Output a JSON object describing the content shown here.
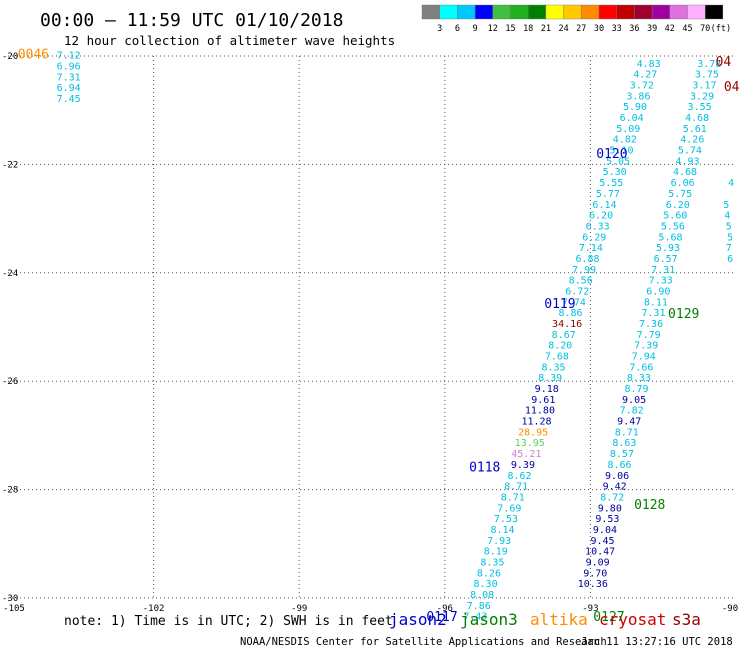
{
  "header": {
    "title": "00:00 – 11:59 UTC 01/10/2018",
    "subtitle": "12 hour collection of altimeter wave heights"
  },
  "color_scale": {
    "labels": [
      "3",
      "6",
      "9",
      "12",
      "15",
      "18",
      "21",
      "24",
      "27",
      "30",
      "33",
      "36",
      "39",
      "42",
      "45",
      "70",
      "(ft)"
    ],
    "colors": [
      "#808080",
      "#00ffff",
      "#00c8ff",
      "#0000ff",
      "#40c040",
      "#20b020",
      "#008000",
      "#ffff00",
      "#ffc800",
      "#ff8c00",
      "#ff0000",
      "#c00000",
      "#a00030",
      "#a000a0",
      "#e070e0",
      "#ffb0ff",
      "#000000"
    ]
  },
  "colors": {
    "jason2": "#0000cc",
    "jason3": "#008000",
    "altika": "#ff8c00",
    "cryosat": "#cc0000",
    "s3a": "#990000",
    "cyan": "#00c0e0",
    "navy": "#000099",
    "darkred": "#8b0000",
    "lightgreen": "#60d060",
    "violet": "#d080d0"
  },
  "chart_data": {
    "type": "scatter",
    "title": "00:00 – 11:59 UTC 01/10/2018",
    "subtitle": "12 hour collection of altimeter wave heights",
    "xlim": [
      -105,
      -90
    ],
    "ylim": [
      -30,
      -20
    ],
    "x_ticks": [
      -105,
      -102,
      -99,
      -96,
      -93,
      -90
    ],
    "x_tick_labels": [
      "-105",
      "-102",
      "-99",
      "-96",
      "-93",
      "-90"
    ],
    "y_ticks": [
      -20,
      -22,
      -24,
      -26,
      -28,
      -30
    ],
    "y_tick_labels": [
      "-20",
      "-22",
      "-24",
      "-26",
      "-28",
      "-30"
    ],
    "grid": true,
    "units": "ft",
    "track_a": [
      {
        "lon": -103.75,
        "lat": -20.05,
        "v": "7.12",
        "c": "cyan"
      },
      {
        "lon": -103.75,
        "lat": -20.25,
        "v": "6.96",
        "c": "cyan"
      },
      {
        "lon": -103.75,
        "lat": -20.45,
        "v": "7.31",
        "c": "cyan"
      },
      {
        "lon": -103.75,
        "lat": -20.65,
        "v": "6.94",
        "c": "cyan"
      },
      {
        "lon": -103.75,
        "lat": -20.85,
        "v": "7.45",
        "c": "cyan"
      }
    ],
    "track_b": [
      {
        "lon": -91.8,
        "lat": -20.2,
        "v": "4.83",
        "c": "cyan"
      },
      {
        "lon": -91.87,
        "lat": -20.4,
        "v": "4.27",
        "c": "cyan"
      },
      {
        "lon": -91.94,
        "lat": -20.6,
        "v": "3.72",
        "c": "cyan"
      },
      {
        "lon": -92.01,
        "lat": -20.8,
        "v": "3.86",
        "c": "cyan"
      },
      {
        "lon": -92.08,
        "lat": -21.0,
        "v": "5.90",
        "c": "cyan"
      },
      {
        "lon": -92.15,
        "lat": -21.2,
        "v": "6.04",
        "c": "cyan"
      },
      {
        "lon": -92.22,
        "lat": -21.4,
        "v": "5.09",
        "c": "cyan"
      },
      {
        "lon": -92.29,
        "lat": -21.6,
        "v": "4.82",
        "c": "cyan"
      },
      {
        "lon": -92.36,
        "lat": -21.8,
        "v": "5.10",
        "c": "cyan"
      },
      {
        "lon": -92.43,
        "lat": -22.0,
        "v": "5.05",
        "c": "cyan"
      },
      {
        "lon": -92.5,
        "lat": -22.2,
        "v": "5.30",
        "c": "cyan"
      },
      {
        "lon": -92.57,
        "lat": -22.4,
        "v": "5.55",
        "c": "cyan"
      },
      {
        "lon": -92.64,
        "lat": -22.6,
        "v": "5.77",
        "c": "cyan"
      },
      {
        "lon": -92.71,
        "lat": -22.8,
        "v": "6.14",
        "c": "cyan"
      },
      {
        "lon": -92.78,
        "lat": -23.0,
        "v": "6.20",
        "c": "cyan"
      },
      {
        "lon": -92.85,
        "lat": -23.2,
        "v": "6.33",
        "c": "cyan"
      },
      {
        "lon": -92.92,
        "lat": -23.4,
        "v": "6.29",
        "c": "cyan"
      },
      {
        "lon": -92.99,
        "lat": -23.6,
        "v": "7.14",
        "c": "cyan"
      },
      {
        "lon": -93.06,
        "lat": -23.8,
        "v": "6.88",
        "c": "cyan"
      },
      {
        "lon": -93.13,
        "lat": -24.0,
        "v": "7.99",
        "c": "cyan"
      },
      {
        "lon": -93.2,
        "lat": -24.2,
        "v": "8.56",
        "c": "cyan"
      },
      {
        "lon": -93.27,
        "lat": -24.4,
        "v": "6.72",
        "c": "cyan"
      },
      {
        "lon": -93.34,
        "lat": -24.6,
        "v": "7.74",
        "c": "cyan"
      },
      {
        "lon": -93.41,
        "lat": -24.8,
        "v": "8.86",
        "c": "cyan"
      },
      {
        "lon": -93.48,
        "lat": -25.0,
        "v": "34.16",
        "c": "darkred"
      },
      {
        "lon": -93.55,
        "lat": -25.2,
        "v": "8.67",
        "c": "cyan"
      },
      {
        "lon": -93.62,
        "lat": -25.4,
        "v": "8.20",
        "c": "cyan"
      },
      {
        "lon": -93.69,
        "lat": -25.6,
        "v": "7.68",
        "c": "cyan"
      },
      {
        "lon": -93.76,
        "lat": -25.8,
        "v": "8.35",
        "c": "cyan"
      },
      {
        "lon": -93.83,
        "lat": -26.0,
        "v": "8.39",
        "c": "cyan"
      },
      {
        "lon": -93.9,
        "lat": -26.2,
        "v": "9.18",
        "c": "navy"
      },
      {
        "lon": -93.97,
        "lat": -26.4,
        "v": "9.61",
        "c": "navy"
      },
      {
        "lon": -94.04,
        "lat": -26.6,
        "v": "11.80",
        "c": "navy"
      },
      {
        "lon": -94.11,
        "lat": -26.8,
        "v": "11.28",
        "c": "navy"
      },
      {
        "lon": -94.18,
        "lat": -27.0,
        "v": "28.95",
        "c": "altika"
      },
      {
        "lon": -94.25,
        "lat": -27.2,
        "v": "13.95",
        "c": "lightgreen"
      },
      {
        "lon": -94.32,
        "lat": -27.4,
        "v": "45.21",
        "c": "violet"
      },
      {
        "lon": -94.39,
        "lat": -27.6,
        "v": "9.39",
        "c": "navy"
      },
      {
        "lon": -94.46,
        "lat": -27.8,
        "v": "8.62",
        "c": "cyan"
      },
      {
        "lon": -94.53,
        "lat": -28.0,
        "v": "8.71",
        "c": "cyan"
      },
      {
        "lon": -94.6,
        "lat": -28.2,
        "v": "8.71",
        "c": "cyan"
      },
      {
        "lon": -94.67,
        "lat": -28.4,
        "v": "7.69",
        "c": "cyan"
      },
      {
        "lon": -94.74,
        "lat": -28.6,
        "v": "7.53",
        "c": "cyan"
      },
      {
        "lon": -94.81,
        "lat": -28.8,
        "v": "8.14",
        "c": "cyan"
      },
      {
        "lon": -94.88,
        "lat": -29.0,
        "v": "7.93",
        "c": "cyan"
      },
      {
        "lon": -94.95,
        "lat": -29.2,
        "v": "8.19",
        "c": "cyan"
      },
      {
        "lon": -95.02,
        "lat": -29.4,
        "v": "8.35",
        "c": "cyan"
      },
      {
        "lon": -95.09,
        "lat": -29.6,
        "v": "8.26",
        "c": "cyan"
      },
      {
        "lon": -95.16,
        "lat": -29.8,
        "v": "8.30",
        "c": "cyan"
      },
      {
        "lon": -95.23,
        "lat": -30.0,
        "v": "8.08",
        "c": "cyan"
      },
      {
        "lon": -95.3,
        "lat": -30.2,
        "v": "7.86",
        "c": "cyan"
      },
      {
        "lon": -95.37,
        "lat": -30.4,
        "v": "7.43",
        "c": "cyan"
      }
    ],
    "track_c": [
      {
        "lon": -90.55,
        "lat": -20.2,
        "v": "3.78",
        "c": "cyan"
      },
      {
        "lon": -90.6,
        "lat": -20.4,
        "v": "3.75",
        "c": "cyan"
      },
      {
        "lon": -90.65,
        "lat": -20.6,
        "v": "3.17",
        "c": "cyan"
      },
      {
        "lon": -90.7,
        "lat": -20.8,
        "v": "3.29",
        "c": "cyan"
      },
      {
        "lon": -90.75,
        "lat": -21.0,
        "v": "3.55",
        "c": "cyan"
      },
      {
        "lon": -90.8,
        "lat": -21.2,
        "v": "4.68",
        "c": "cyan"
      },
      {
        "lon": -90.85,
        "lat": -21.4,
        "v": "5.61",
        "c": "cyan"
      },
      {
        "lon": -90.9,
        "lat": -21.6,
        "v": "4.26",
        "c": "cyan"
      },
      {
        "lon": -90.95,
        "lat": -21.8,
        "v": "5.74",
        "c": "cyan"
      },
      {
        "lon": -91.0,
        "lat": -22.0,
        "v": "4.93",
        "c": "cyan"
      },
      {
        "lon": -91.05,
        "lat": -22.2,
        "v": "4.68",
        "c": "cyan"
      },
      {
        "lon": -91.1,
        "lat": -22.4,
        "v": "6.06",
        "c": "cyan"
      },
      {
        "lon": -91.15,
        "lat": -22.6,
        "v": "5.75",
        "c": "cyan"
      },
      {
        "lon": -91.2,
        "lat": -22.8,
        "v": "6.20",
        "c": "cyan"
      },
      {
        "lon": -91.25,
        "lat": -23.0,
        "v": "5.60",
        "c": "cyan"
      },
      {
        "lon": -91.3,
        "lat": -23.2,
        "v": "5.56",
        "c": "cyan"
      },
      {
        "lon": -91.35,
        "lat": -23.4,
        "v": "5.68",
        "c": "cyan"
      },
      {
        "lon": -91.4,
        "lat": -23.6,
        "v": "5.93",
        "c": "cyan"
      },
      {
        "lon": -91.45,
        "lat": -23.8,
        "v": "6.57",
        "c": "cyan"
      },
      {
        "lon": -91.5,
        "lat": -24.0,
        "v": "7.31",
        "c": "cyan"
      },
      {
        "lon": -91.55,
        "lat": -24.2,
        "v": "7.33",
        "c": "cyan"
      },
      {
        "lon": -91.6,
        "lat": -24.4,
        "v": "6.90",
        "c": "cyan"
      },
      {
        "lon": -91.65,
        "lat": -24.6,
        "v": "8.11",
        "c": "cyan"
      },
      {
        "lon": -91.7,
        "lat": -24.8,
        "v": "7.31",
        "c": "cyan"
      },
      {
        "lon": -91.75,
        "lat": -25.0,
        "v": "7.36",
        "c": "cyan"
      },
      {
        "lon": -91.8,
        "lat": -25.2,
        "v": "7.79",
        "c": "cyan"
      },
      {
        "lon": -91.85,
        "lat": -25.4,
        "v": "7.39",
        "c": "cyan"
      },
      {
        "lon": -91.9,
        "lat": -25.6,
        "v": "7.94",
        "c": "cyan"
      },
      {
        "lon": -91.95,
        "lat": -25.8,
        "v": "7.66",
        "c": "cyan"
      },
      {
        "lon": -92.0,
        "lat": -26.0,
        "v": "8.33",
        "c": "cyan"
      },
      {
        "lon": -92.05,
        "lat": -26.2,
        "v": "8.79",
        "c": "cyan"
      },
      {
        "lon": -92.1,
        "lat": -26.4,
        "v": "9.05",
        "c": "navy"
      },
      {
        "lon": -92.15,
        "lat": -26.6,
        "v": "7.82",
        "c": "cyan"
      },
      {
        "lon": -92.2,
        "lat": -26.8,
        "v": "9.47",
        "c": "navy"
      },
      {
        "lon": -92.25,
        "lat": -27.0,
        "v": "8.71",
        "c": "cyan"
      },
      {
        "lon": -92.3,
        "lat": -27.2,
        "v": "8.63",
        "c": "cyan"
      },
      {
        "lon": -92.35,
        "lat": -27.4,
        "v": "8.57",
        "c": "cyan"
      },
      {
        "lon": -92.4,
        "lat": -27.6,
        "v": "8.66",
        "c": "cyan"
      },
      {
        "lon": -92.45,
        "lat": -27.8,
        "v": "9.06",
        "c": "navy"
      },
      {
        "lon": -92.5,
        "lat": -28.0,
        "v": "9.42",
        "c": "navy"
      },
      {
        "lon": -92.55,
        "lat": -28.2,
        "v": "8.72",
        "c": "cyan"
      },
      {
        "lon": -92.6,
        "lat": -28.4,
        "v": "9.80",
        "c": "navy"
      },
      {
        "lon": -92.65,
        "lat": -28.6,
        "v": "9.53",
        "c": "navy"
      },
      {
        "lon": -92.7,
        "lat": -28.8,
        "v": "9.04",
        "c": "navy"
      },
      {
        "lon": -92.75,
        "lat": -29.0,
        "v": "9.45",
        "c": "navy"
      },
      {
        "lon": -92.8,
        "lat": -29.2,
        "v": "10.47",
        "c": "navy"
      },
      {
        "lon": -92.85,
        "lat": -29.4,
        "v": "9.09",
        "c": "navy"
      },
      {
        "lon": -92.9,
        "lat": -29.6,
        "v": "9.70",
        "c": "navy"
      },
      {
        "lon": -92.95,
        "lat": -29.8,
        "v": "10.36",
        "c": "navy"
      }
    ],
    "track_d": [
      {
        "lon": -90.1,
        "lat": -22.4,
        "v": "4",
        "c": "cyan"
      },
      {
        "lon": -90.2,
        "lat": -22.8,
        "v": "5",
        "c": "cyan"
      },
      {
        "lon": -90.18,
        "lat": -23.0,
        "v": "4",
        "c": "cyan"
      },
      {
        "lon": -90.15,
        "lat": -23.2,
        "v": "5",
        "c": "cyan"
      },
      {
        "lon": -90.12,
        "lat": -23.4,
        "v": "5",
        "c": "cyan"
      },
      {
        "lon": -90.15,
        "lat": -23.6,
        "v": "7",
        "c": "cyan"
      },
      {
        "lon": -90.12,
        "lat": -23.8,
        "v": "6",
        "c": "cyan"
      }
    ],
    "time_labels": [
      {
        "lon": -104.8,
        "lat": -20.05,
        "t": "0046",
        "c": "altika"
      },
      {
        "lon": -92.88,
        "lat": -21.88,
        "t": "0120",
        "c": "jason2"
      },
      {
        "lon": -93.95,
        "lat": -24.65,
        "t": "0119",
        "c": "jason2"
      },
      {
        "lon": -95.5,
        "lat": -27.67,
        "t": "0118",
        "c": "jason2"
      },
      {
        "lon": -96.38,
        "lat": -30.42,
        "t": "0117",
        "c": "jason2"
      },
      {
        "lon": -91.4,
        "lat": -24.83,
        "t": "0129",
        "c": "jason3"
      },
      {
        "lon": -92.1,
        "lat": -28.36,
        "t": "0128",
        "c": "jason3"
      },
      {
        "lon": -92.94,
        "lat": -30.42,
        "t": "0127",
        "c": "jason3"
      },
      {
        "lon": -90.42,
        "lat": -20.18,
        "t": "04",
        "c": "s3a"
      },
      {
        "lon": -90.25,
        "lat": -20.65,
        "t": "04",
        "c": "s3a"
      }
    ],
    "legend": [
      "jason2",
      "jason3",
      "altika",
      "cryosat",
      "s3a"
    ]
  },
  "note": "note: 1) Time is in UTC; 2) SWH is in feet",
  "legend_labels": {
    "jason2": "jason2",
    "jason3": "jason3",
    "altika": "altika",
    "cryosat": "cryosat",
    "s3a": "s3a"
  },
  "footer": {
    "credit": "NOAA/NESDIS Center for Satellite Applications and Research",
    "timestamp": "Jan 11 13:27:16 UTC 2018"
  }
}
